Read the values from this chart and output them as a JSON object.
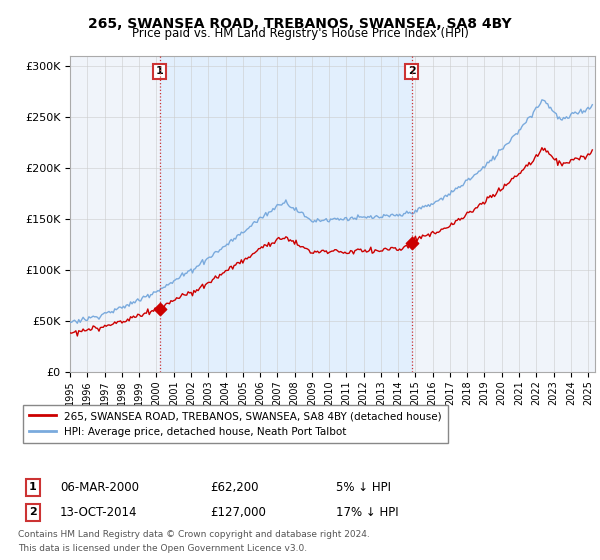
{
  "title": "265, SWANSEA ROAD, TREBANOS, SWANSEA, SA8 4BY",
  "subtitle": "Price paid vs. HM Land Registry's House Price Index (HPI)",
  "ylabel_ticks": [
    "£0",
    "£50K",
    "£100K",
    "£150K",
    "£200K",
    "£250K",
    "£300K"
  ],
  "ytick_values": [
    0,
    50000,
    100000,
    150000,
    200000,
    250000,
    300000
  ],
  "ylim": [
    0,
    310000
  ],
  "purchase1_price": 62200,
  "purchase2_price": 127000,
  "purchase1_date_str": "06-MAR-2000",
  "purchase2_date_str": "13-OCT-2014",
  "purchase1_pct": "5% ↓ HPI",
  "purchase2_pct": "17% ↓ HPI",
  "legend_house": "265, SWANSEA ROAD, TREBANOS, SWANSEA, SA8 4BY (detached house)",
  "legend_hpi": "HPI: Average price, detached house, Neath Port Talbot",
  "footer1": "Contains HM Land Registry data © Crown copyright and database right 2024.",
  "footer2": "This data is licensed under the Open Government Licence v3.0.",
  "house_color": "#cc0000",
  "hpi_color": "#7aaadd",
  "shade_color": "#ddeeff",
  "bg_color": "#f0f4fa",
  "annotation_box_color": "#cc3333",
  "grid_color": "#cccccc",
  "fig_width": 6.0,
  "fig_height": 5.6,
  "dpi": 100
}
